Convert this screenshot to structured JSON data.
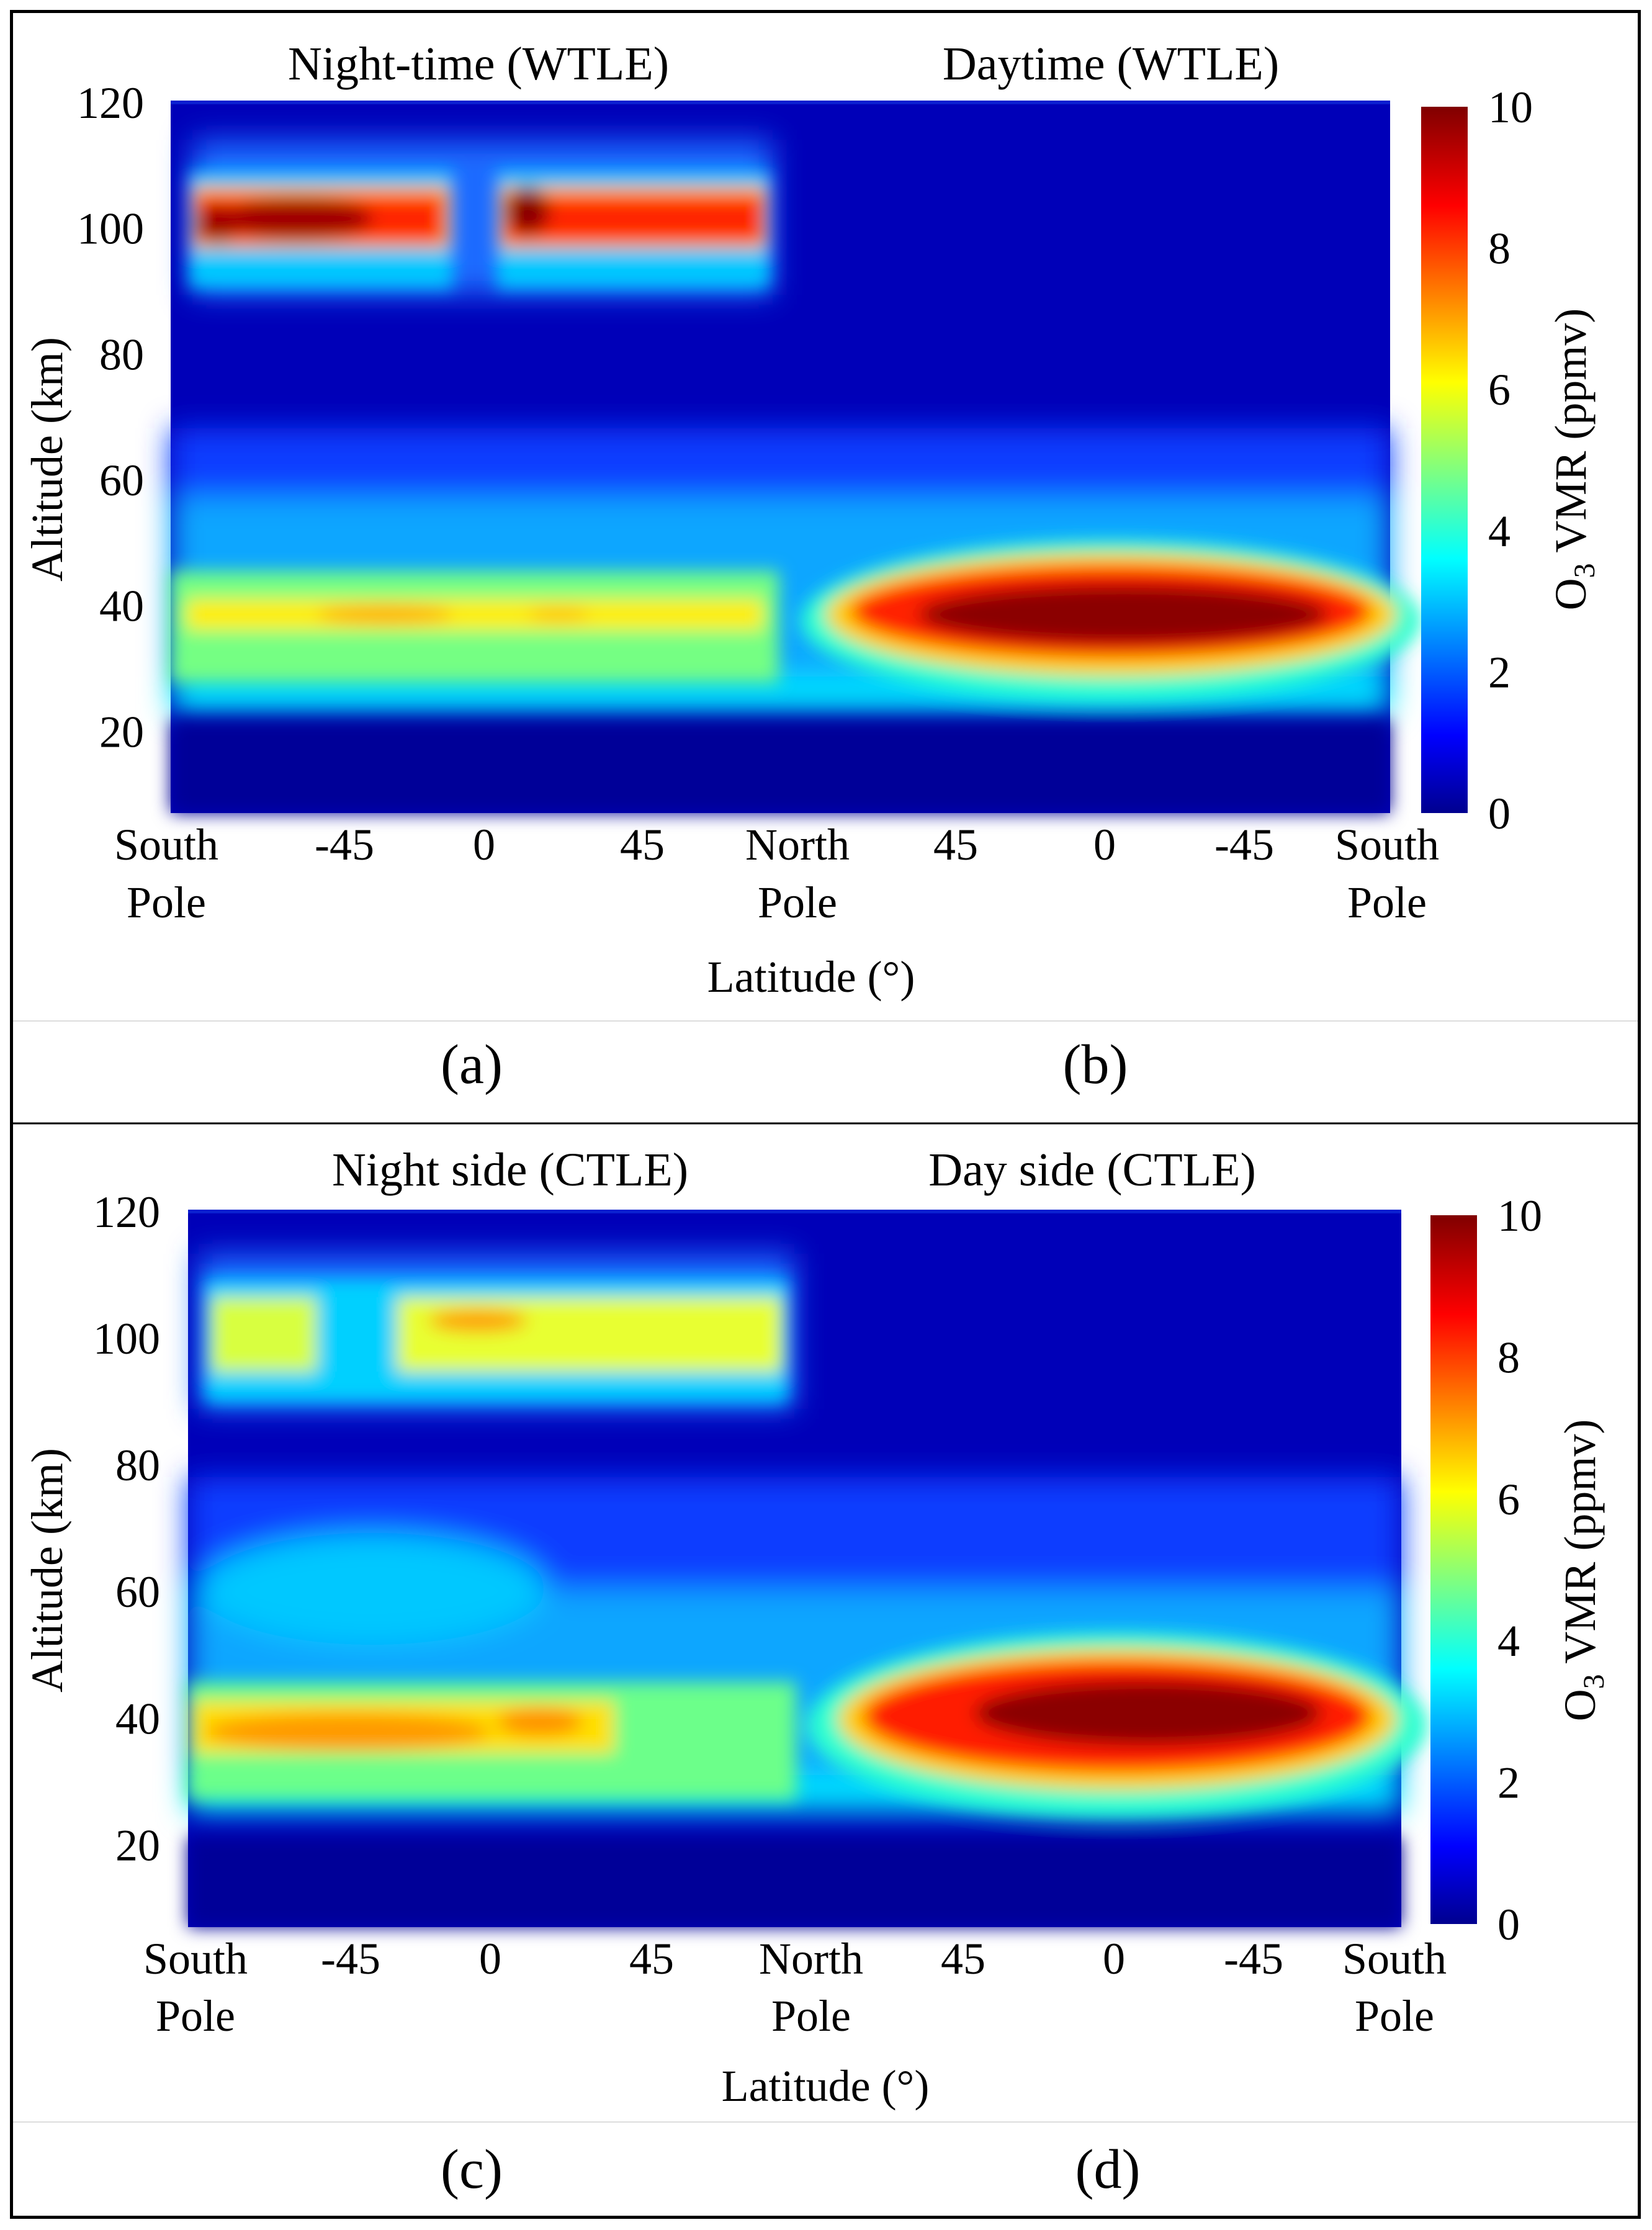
{
  "chart_data": [
    {
      "type": "heatmap",
      "panels": [
        {
          "label": "(a)",
          "title": "Night-time (WTLE)"
        },
        {
          "label": "(b)",
          "title": "Daytime (WTLE)"
        }
      ],
      "xlabel": "Latitude (°)",
      "x_tick_labels": [
        [
          "South",
          "Pole"
        ],
        [
          "-45"
        ],
        [
          "0"
        ],
        [
          "45"
        ],
        [
          "North",
          "Pole"
        ],
        [
          "45"
        ],
        [
          "0"
        ],
        [
          "-45"
        ],
        [
          "South",
          "Pole"
        ]
      ],
      "ylabel": "Altitude  (km)",
      "y_ticks": [
        20,
        40,
        60,
        80,
        100,
        120
      ],
      "ylim": [
        7,
        120
      ],
      "colorbar": {
        "label_main": "O",
        "label_sub": "3",
        "label_rest": " VMR  (ppmv)",
        "range": [
          0,
          10
        ],
        "ticks": [
          0,
          2,
          4,
          6,
          8,
          10
        ]
      },
      "features": [
        {
          "panel": "night",
          "layer": "mesospheric",
          "alt_range_km": [
            92,
            104
          ],
          "peak_vmr_ppmv": 10,
          "lat_gap_deg": [
            -5,
            5
          ]
        },
        {
          "panel": "night",
          "layer": "stratospheric",
          "alt_range_km": [
            25,
            40
          ],
          "peak_vmr_ppmv": 7
        },
        {
          "panel": "day",
          "layer": "stratospheric",
          "alt_range_km": [
            30,
            40
          ],
          "peak_vmr_ppmv": 10,
          "peak_alt_km": 35
        },
        {
          "panel": "day",
          "layer": "mesospheric",
          "peak_vmr_ppmv": 0.8
        }
      ]
    },
    {
      "type": "heatmap",
      "panels": [
        {
          "label": "(c)",
          "title": "Night side (CTLE)"
        },
        {
          "label": "(d)",
          "title": "Day side (CTLE)"
        }
      ],
      "xlabel": "Latitude (°)",
      "x_tick_labels": [
        [
          "South",
          "Pole"
        ],
        [
          "-45"
        ],
        [
          "0"
        ],
        [
          "45"
        ],
        [
          "North",
          "Pole"
        ],
        [
          "45"
        ],
        [
          "0"
        ],
        [
          "-45"
        ],
        [
          "South",
          "Pole"
        ]
      ],
      "ylabel": "Altitude  (km)",
      "y_ticks": [
        20,
        40,
        60,
        80,
        100,
        120
      ],
      "ylim": [
        7,
        120
      ],
      "colorbar": {
        "label_main": "O",
        "label_sub": "3",
        "label_rest": " VMR  (ppmv)",
        "range": [
          0,
          10
        ],
        "ticks": [
          0,
          2,
          4,
          6,
          8,
          10
        ]
      },
      "features": [
        {
          "panel": "night",
          "layer": "mesospheric",
          "alt_range_km": [
            92,
            105
          ],
          "peak_vmr_ppmv": 8,
          "peak_alt_km": 101
        },
        {
          "panel": "night",
          "layer": "stratospheric",
          "alt_range_km": [
            25,
            40
          ],
          "peak_vmr_ppmv": 7.5
        },
        {
          "panel": "day",
          "layer": "stratospheric",
          "alt_range_km": [
            30,
            42
          ],
          "peak_vmr_ppmv": 10,
          "peak_alt_km": 36
        }
      ]
    }
  ]
}
